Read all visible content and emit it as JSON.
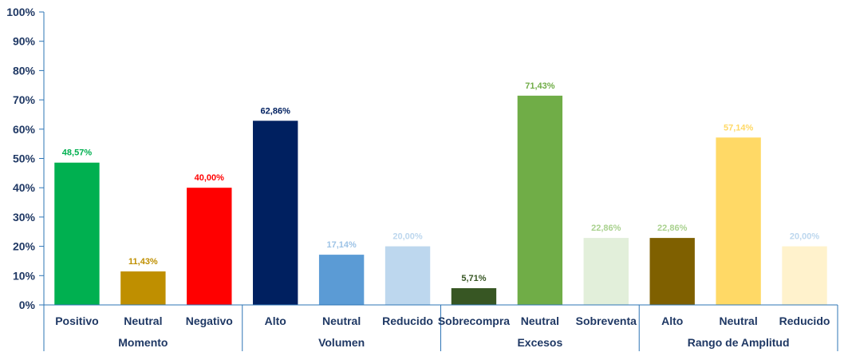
{
  "chart_data": {
    "type": "bar",
    "title": "",
    "xlabel": "",
    "ylabel": "",
    "ylim": [
      0,
      100
    ],
    "yticks": [
      "0%",
      "10%",
      "20%",
      "30%",
      "40%",
      "50%",
      "60%",
      "70%",
      "80%",
      "90%",
      "100%"
    ],
    "grid": false,
    "legend": "none",
    "axis_color": "#2e75b6",
    "text_color": "#1f3864",
    "groups": [
      {
        "name": "Momento",
        "bars": [
          {
            "category": "Positivo",
            "value": 48.57,
            "label": "48,57%",
            "color": "#00b050"
          },
          {
            "category": "Neutral",
            "value": 11.43,
            "label": "11,43%",
            "color": "#bf8f00"
          },
          {
            "category": "Negativo",
            "value": 40.0,
            "label": "40,00%",
            "color": "#ff0000"
          }
        ]
      },
      {
        "name": "Volumen",
        "bars": [
          {
            "category": "Alto",
            "value": 62.86,
            "label": "62,86%",
            "color": "#002060"
          },
          {
            "category": "Neutral",
            "value": 17.14,
            "label": "17,14%",
            "color": "#5b9bd5"
          },
          {
            "category": "Reducido",
            "value": 20.0,
            "label": "20,00%",
            "color": "#bdd7ee"
          }
        ]
      },
      {
        "name": "Excesos",
        "bars": [
          {
            "category": "Sobrecompra",
            "value": 5.71,
            "label": "5,71%",
            "color": "#375623"
          },
          {
            "category": "Neutral",
            "value": 71.43,
            "label": "71,43%",
            "color": "#70ad47"
          },
          {
            "category": "Sobreventa",
            "value": 22.86,
            "label": "22,86%",
            "color": "#e2efda"
          }
        ]
      },
      {
        "name": "Rango de Amplitud",
        "bars": [
          {
            "category": "Alto",
            "value": 22.86,
            "label": "22,86%",
            "color": "#7f6000"
          },
          {
            "category": "Neutral",
            "value": 57.14,
            "label": "57,14%",
            "color": "#ffd966"
          },
          {
            "category": "Reducido",
            "value": 20.0,
            "label": "20,00%",
            "color": "#fff2cc"
          }
        ]
      }
    ],
    "label_colors": {
      "48,57%": "#00b050",
      "11,43%": "#bf8f00",
      "40,00%": "#ff0000",
      "62,86%": "#002060",
      "17,14%": "#9dc3e6",
      "20,00%": "#bdd7ee",
      "5,71%": "#375623",
      "71,43%": "#70ad47",
      "22,86%": "#a9d18e"
    }
  }
}
